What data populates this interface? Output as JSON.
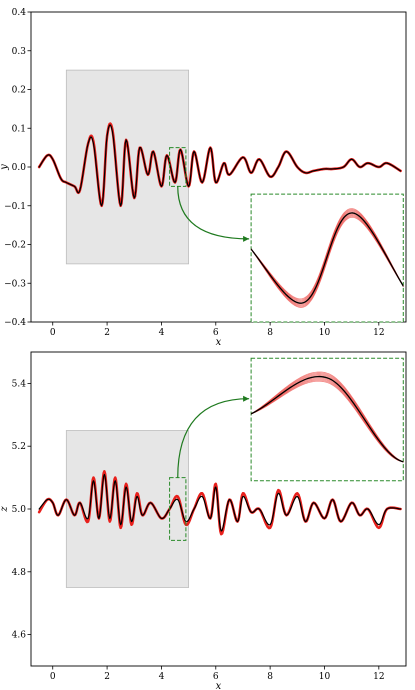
{
  "chart_data": [
    {
      "type": "line",
      "xlabel": "x",
      "ylabel": "y",
      "xlim": [
        -0.8,
        13.0
      ],
      "ylim": [
        -0.4,
        0.4
      ],
      "xticks": [
        0,
        2,
        4,
        6,
        8,
        10,
        12
      ],
      "yticks": [
        -0.4,
        -0.3,
        -0.2,
        -0.1,
        0.0,
        0.1,
        0.2,
        0.3,
        0.4
      ],
      "xtick_labels": [
        "0",
        "2",
        "4",
        "6",
        "8",
        "10",
        "12"
      ],
      "ytick_labels": [
        "−0.4",
        "−0.3",
        "−0.2",
        "−0.1",
        "0.0",
        "0.1",
        "0.2",
        "0.3",
        "0.4"
      ],
      "shaded_region": {
        "x": [
          0.5,
          5.0
        ],
        "y": [
          -0.25,
          0.25
        ]
      },
      "zoom_box": {
        "x": [
          4.3,
          4.9
        ],
        "y": [
          -0.05,
          0.05
        ]
      },
      "inset": {
        "x": [
          7.3,
          12.9
        ],
        "y": [
          -0.4,
          -0.07
        ]
      },
      "series": [
        {
          "role": "ensemble",
          "color": "#e8201c",
          "x": [
            -0.5,
            -0.2,
            0.0,
            0.3,
            0.5,
            0.8,
            1.0,
            1.3,
            1.5,
            1.8,
            2.0,
            2.2,
            2.5,
            2.7,
            3.0,
            3.2,
            3.5,
            3.7,
            4.0,
            4.2,
            4.5,
            4.7,
            5.0,
            5.2,
            5.5,
            5.8,
            6.0,
            6.3,
            6.5,
            7.0,
            7.3,
            7.6,
            8.0,
            8.3,
            8.6,
            9.0,
            9.3,
            9.6,
            10.0,
            10.3,
            10.7,
            11.0,
            11.3,
            11.6,
            12.0,
            12.3,
            12.8
          ],
          "y": [
            0.0,
            0.03,
            0.02,
            -0.03,
            -0.04,
            -0.05,
            -0.06,
            0.06,
            0.065,
            -0.1,
            0.08,
            0.095,
            -0.1,
            0.07,
            -0.08,
            0.05,
            -0.02,
            0.04,
            -0.05,
            0.03,
            -0.04,
            0.045,
            -0.05,
            0.04,
            -0.04,
            0.05,
            -0.04,
            0.01,
            -0.02,
            0.025,
            -0.015,
            0.02,
            -0.025,
            0.0,
            0.04,
            0.0,
            -0.015,
            -0.01,
            -0.005,
            -0.005,
            0.0,
            0.02,
            0.0,
            0.01,
            0.0,
            0.01,
            -0.01
          ]
        },
        {
          "role": "reference",
          "color": "#000000",
          "x": [
            -0.5,
            -0.2,
            0.0,
            0.3,
            0.5,
            0.8,
            1.0,
            1.3,
            1.5,
            1.8,
            2.0,
            2.2,
            2.5,
            2.7,
            3.0,
            3.2,
            3.5,
            3.7,
            4.0,
            4.2,
            4.5,
            4.7,
            5.0,
            5.2,
            5.5,
            5.8,
            6.0,
            6.3,
            6.5,
            7.0,
            7.3,
            7.6,
            8.0,
            8.3,
            8.6,
            9.0,
            9.3,
            9.6,
            10.0,
            10.3,
            10.7,
            11.0,
            11.3,
            11.6,
            12.0,
            12.3,
            12.8
          ],
          "y": [
            0.0,
            0.03,
            0.02,
            -0.03,
            -0.04,
            -0.05,
            -0.06,
            0.06,
            0.06,
            -0.1,
            0.08,
            0.09,
            -0.1,
            0.07,
            -0.08,
            0.05,
            -0.02,
            0.04,
            -0.05,
            0.03,
            -0.04,
            0.045,
            -0.05,
            0.04,
            -0.04,
            0.05,
            -0.04,
            0.01,
            -0.02,
            0.025,
            -0.015,
            0.02,
            -0.025,
            0.0,
            0.04,
            0.0,
            -0.015,
            -0.01,
            -0.005,
            -0.005,
            0.0,
            0.02,
            0.0,
            0.01,
            0.0,
            0.01,
            -0.01
          ]
        }
      ]
    },
    {
      "type": "line",
      "xlabel": "x",
      "ylabel": "z",
      "xlim": [
        -0.8,
        13.0
      ],
      "ylim": [
        4.5,
        5.5
      ],
      "xticks": [
        0,
        2,
        4,
        6,
        8,
        10,
        12
      ],
      "yticks": [
        4.6,
        4.8,
        5.0,
        5.2,
        5.4
      ],
      "xtick_labels": [
        "0",
        "2",
        "4",
        "6",
        "8",
        "10",
        "12"
      ],
      "ytick_labels": [
        "4.6",
        "4.8",
        "5.0",
        "5.2",
        "5.4"
      ],
      "shaded_region": {
        "x": [
          0.5,
          5.0
        ],
        "y": [
          4.75,
          5.25
        ]
      },
      "zoom_box": {
        "x": [
          4.3,
          4.9
        ],
        "y": [
          4.9,
          5.1
        ]
      },
      "inset": {
        "x": [
          7.3,
          12.9
        ],
        "y": [
          5.09,
          5.48
        ]
      },
      "series": [
        {
          "role": "ensemble",
          "color": "#e8201c",
          "x": [
            -0.5,
            -0.2,
            0.0,
            0.2,
            0.5,
            0.8,
            1.0,
            1.3,
            1.5,
            1.7,
            1.9,
            2.1,
            2.3,
            2.5,
            2.7,
            2.9,
            3.1,
            3.3,
            3.6,
            4.0,
            4.3,
            4.6,
            4.9,
            5.2,
            5.5,
            5.8,
            6.0,
            6.2,
            6.5,
            6.8,
            7.0,
            7.3,
            7.6,
            8.0,
            8.3,
            8.6,
            9.0,
            9.3,
            9.6,
            10.0,
            10.3,
            10.6,
            11.0,
            11.3,
            11.6,
            12.0,
            12.3,
            12.8
          ],
          "y": [
            4.99,
            5.03,
            5.02,
            4.98,
            5.03,
            4.98,
            5.02,
            4.96,
            5.1,
            4.97,
            5.12,
            4.96,
            5.1,
            4.94,
            5.08,
            4.95,
            5.05,
            4.98,
            5.02,
            4.97,
            5.0,
            5.04,
            4.95,
            5.0,
            5.05,
            4.97,
            5.08,
            4.92,
            5.03,
            4.96,
            5.05,
            4.99,
            5.0,
            4.94,
            5.06,
            4.98,
            5.05,
            4.96,
            5.02,
            4.97,
            5.03,
            4.96,
            5.02,
            4.98,
            5.0,
            4.94,
            5.0,
            5.0
          ]
        },
        {
          "role": "reference",
          "color": "#000000",
          "x": [
            -0.5,
            -0.2,
            0.0,
            0.2,
            0.5,
            0.8,
            1.0,
            1.3,
            1.5,
            1.7,
            1.9,
            2.1,
            2.3,
            2.5,
            2.7,
            2.9,
            3.1,
            3.3,
            3.6,
            4.0,
            4.3,
            4.6,
            4.9,
            5.2,
            5.5,
            5.8,
            6.0,
            6.2,
            6.5,
            6.8,
            7.0,
            7.3,
            7.6,
            8.0,
            8.3,
            8.6,
            9.0,
            9.3,
            9.6,
            10.0,
            10.3,
            10.6,
            11.0,
            11.3,
            11.6,
            12.0,
            12.3,
            12.8
          ],
          "y": [
            5.0,
            5.03,
            5.02,
            4.98,
            5.03,
            4.98,
            5.02,
            4.97,
            5.09,
            4.97,
            5.11,
            4.97,
            5.09,
            4.95,
            5.07,
            4.96,
            5.04,
            4.98,
            5.02,
            4.97,
            5.0,
            5.03,
            4.96,
            5.0,
            5.04,
            4.97,
            5.07,
            4.93,
            5.03,
            4.96,
            5.04,
            4.99,
            5.0,
            4.95,
            5.05,
            4.98,
            5.04,
            4.96,
            5.02,
            4.97,
            5.03,
            4.96,
            5.02,
            4.98,
            5.0,
            4.95,
            5.0,
            5.0
          ]
        }
      ]
    }
  ]
}
